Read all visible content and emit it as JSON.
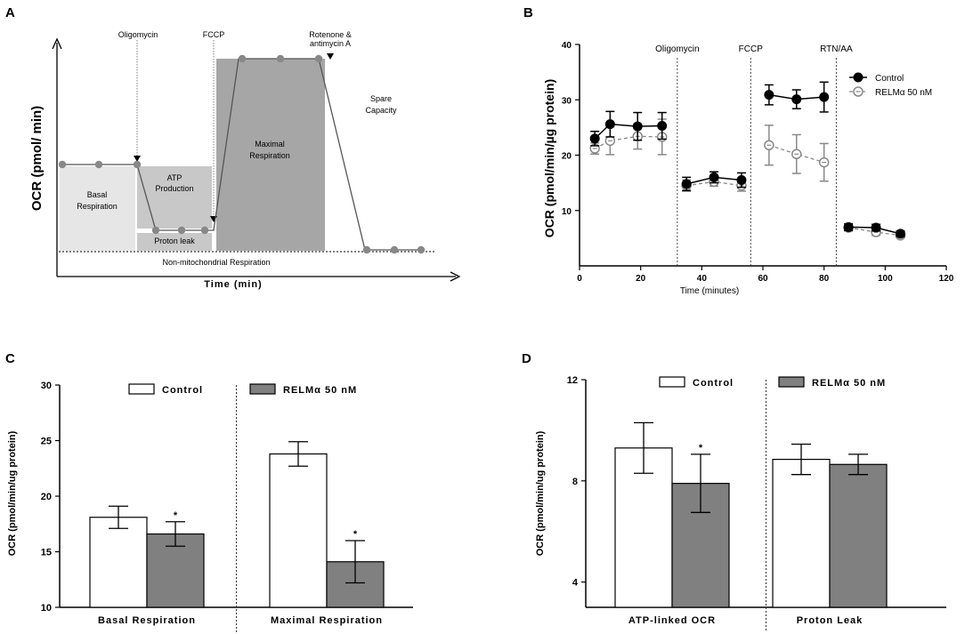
{
  "panels": {
    "a": "A",
    "b": "B",
    "c": "C",
    "d": "D"
  },
  "colors": {
    "filled": "#000000",
    "open": "#9a9a9a",
    "bar_control": "#ffffff",
    "bar_relm": "#808080",
    "schematic_point": "#888888"
  },
  "schematic": {
    "ylabel": "OCR (pmol/ min)",
    "xlabel": "Time (min)",
    "injections": {
      "oligomycin": "Oligomycin",
      "fccp": "FCCP",
      "rotenone_line1": "Rotenone &",
      "rotenone_line2": "antimycin A"
    },
    "regions": {
      "basal_line1": "Basal",
      "basal_line2": "Respiration",
      "atp_line1": "ATP",
      "atp_line2": "Production",
      "proton_leak": "Proton leak",
      "maximal_line1": "Maximal",
      "maximal_line2": "Respiration",
      "spare_line1": "Spare",
      "spare_line2": "Capacity",
      "nonmito": "Non-mitochondrial Respiration"
    }
  },
  "chart_data": [
    {
      "id": "B",
      "type": "line",
      "title": "",
      "xlabel": "Time (minutes)",
      "ylabel": "OCR (pmol/min/µg protein)",
      "xlim": [
        0,
        120
      ],
      "ylim": [
        0,
        40
      ],
      "xticks": [
        0,
        20,
        40,
        60,
        80,
        100,
        120
      ],
      "yticks": [
        10,
        20,
        30,
        40
      ],
      "injections": [
        {
          "label": "Oligomycin",
          "x": 32
        },
        {
          "label": "FCCP",
          "x": 56
        },
        {
          "label": "RTN/AA",
          "x": 84
        }
      ],
      "legend_position": "right",
      "series": [
        {
          "name": "Control",
          "marker": "filled",
          "segments": [
            [
              {
                "x": 5,
                "y": 23.0,
                "err": 1.3
              },
              {
                "x": 10,
                "y": 25.6,
                "err": 2.3
              },
              {
                "x": 19,
                "y": 25.2,
                "err": 2.5
              },
              {
                "x": 27,
                "y": 25.3,
                "err": 2.4
              }
            ],
            [
              {
                "x": 35,
                "y": 14.8,
                "err": 1.2
              },
              {
                "x": 44,
                "y": 16.0,
                "err": 1.0
              },
              {
                "x": 53,
                "y": 15.5,
                "err": 1.3
              }
            ],
            [
              {
                "x": 62,
                "y": 30.9,
                "err": 1.8
              },
              {
                "x": 71,
                "y": 30.1,
                "err": 1.7
              },
              {
                "x": 80,
                "y": 30.5,
                "err": 2.7
              }
            ],
            [
              {
                "x": 88,
                "y": 7.0,
                "err": 0.6
              },
              {
                "x": 97,
                "y": 6.9,
                "err": 0.6
              },
              {
                "x": 105,
                "y": 5.8,
                "err": 0.5
              }
            ]
          ]
        },
        {
          "name": "RELMα 50 nM",
          "marker": "open",
          "segments": [
            [
              {
                "x": 5,
                "y": 21.2,
                "err": 1.0
              },
              {
                "x": 10,
                "y": 22.6,
                "err": 2.5
              },
              {
                "x": 19,
                "y": 23.4,
                "err": 2.3
              },
              {
                "x": 27,
                "y": 23.3,
                "err": 3.2
              }
            ],
            [
              {
                "x": 35,
                "y": 14.5,
                "err": 1.0
              },
              {
                "x": 44,
                "y": 15.2,
                "err": 0.8
              },
              {
                "x": 53,
                "y": 14.5,
                "err": 1.0
              }
            ],
            [
              {
                "x": 62,
                "y": 21.8,
                "err": 3.6
              },
              {
                "x": 71,
                "y": 20.2,
                "err": 3.5
              },
              {
                "x": 80,
                "y": 18.7,
                "err": 3.4
              }
            ],
            [
              {
                "x": 88,
                "y": 6.9,
                "err": 0.6
              },
              {
                "x": 97,
                "y": 6.1,
                "err": 0.6
              },
              {
                "x": 105,
                "y": 5.5,
                "err": 0.5
              }
            ]
          ]
        }
      ]
    },
    {
      "id": "C",
      "type": "bar",
      "ylabel": "OCR (pmol/min/ug protein)",
      "ylim": [
        10,
        30
      ],
      "yticks": [
        10,
        15,
        20,
        25,
        30
      ],
      "categories": [
        "Basal Respiration",
        "Maximal Respiration"
      ],
      "legend_position": "top",
      "series": [
        {
          "name": "Control",
          "values": [
            18.1,
            23.8
          ],
          "errors": [
            1.0,
            1.1
          ],
          "significance": [
            "",
            ""
          ]
        },
        {
          "name": "RELMα 50 nM",
          "values": [
            16.6,
            14.1
          ],
          "errors": [
            1.1,
            1.9
          ],
          "significance": [
            "*",
            "*"
          ]
        }
      ]
    },
    {
      "id": "D",
      "type": "bar",
      "ylabel": "OCR (pmol/min/ug protein)",
      "ylim": [
        3,
        12
      ],
      "yticks": [
        4,
        8,
        12
      ],
      "categories": [
        "ATP-linked OCR",
        "Proton Leak"
      ],
      "legend_position": "top",
      "series": [
        {
          "name": "Control",
          "values": [
            9.3,
            8.85
          ],
          "errors": [
            1.0,
            0.6
          ],
          "significance": [
            "",
            ""
          ]
        },
        {
          "name": "RELMα 50 nM",
          "values": [
            7.9,
            8.65
          ],
          "errors": [
            1.15,
            0.4
          ],
          "significance": [
            "*",
            ""
          ]
        }
      ]
    }
  ]
}
